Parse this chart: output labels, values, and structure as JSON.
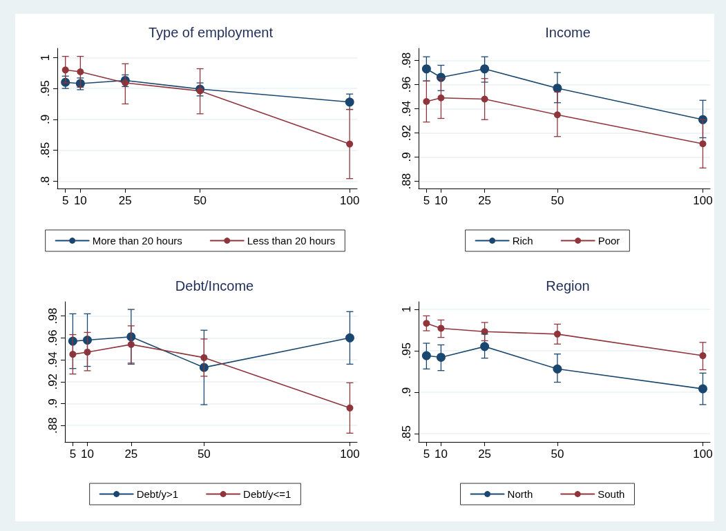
{
  "chart_data": [
    {
      "type": "line",
      "title": "Type of employment",
      "x": [
        5,
        10,
        25,
        50,
        100
      ],
      "xlim": [
        2.3,
        102.5
      ],
      "xticks": [
        5,
        10,
        25,
        50,
        100
      ],
      "ylim": [
        0.788,
        1.015
      ],
      "yticks": [
        {
          "value": 0.8,
          "label": ".8"
        },
        {
          "value": 0.85,
          "label": ".85"
        },
        {
          "value": 0.9,
          "label": ".9"
        },
        {
          "value": 0.95,
          "label": ".95"
        },
        1
      ],
      "grid": "y",
      "legend": "bottom",
      "marker": "circle",
      "line_style": "solid",
      "series": [
        {
          "name": "More than 20 hours",
          "color": "#1a476f",
          "values": [
            0.96,
            0.958,
            0.963,
            0.949,
            0.928
          ],
          "errors": [
            [
              0.95,
              0.97
            ],
            [
              0.948,
              0.967
            ],
            [
              0.953,
              0.972
            ],
            [
              0.938,
              0.959
            ],
            [
              0.916,
              0.941
            ]
          ]
        },
        {
          "name": "Less than 20 hours",
          "color": "#90353b",
          "values": [
            0.98,
            0.977,
            0.959,
            0.946,
            0.86
          ],
          "errors": [
            [
              0.959,
              1.002
            ],
            [
              0.952,
              1.002
            ],
            [
              0.925,
              0.99
            ],
            [
              0.909,
              0.982
            ],
            [
              0.804,
              0.916
            ]
          ]
        }
      ]
    },
    {
      "type": "line",
      "title": "Income",
      "x": [
        5,
        10,
        25,
        50,
        100
      ],
      "xlim": [
        2.3,
        102.5
      ],
      "xticks": [
        5,
        10,
        25,
        50,
        100
      ],
      "ylim": [
        0.874,
        0.99
      ],
      "yticks": [
        {
          "value": 0.88,
          "label": ".88"
        },
        {
          "value": 0.9,
          "label": ".9"
        },
        {
          "value": 0.92,
          "label": ".92"
        },
        {
          "value": 0.94,
          "label": ".94"
        },
        {
          "value": 0.96,
          "label": ".96"
        },
        {
          "value": 0.98,
          "label": ".98"
        }
      ],
      "grid": "y",
      "legend": "bottom",
      "marker": "circle",
      "line_style": "solid",
      "series": [
        {
          "name": "Rich",
          "color": "#1a476f",
          "values": [
            0.973,
            0.966,
            0.973,
            0.957,
            0.931
          ],
          "errors": [
            [
              0.963,
              0.983
            ],
            [
              0.955,
              0.976
            ],
            [
              0.962,
              0.983
            ],
            [
              0.945,
              0.97
            ],
            [
              0.916,
              0.947
            ]
          ]
        },
        {
          "name": "Poor",
          "color": "#90353b",
          "values": [
            0.946,
            0.949,
            0.948,
            0.935,
            0.911
          ],
          "errors": [
            [
              0.929,
              0.963
            ],
            [
              0.932,
              0.965
            ],
            [
              0.931,
              0.965
            ],
            [
              0.917,
              0.954
            ],
            [
              0.891,
              0.931
            ]
          ]
        }
      ]
    },
    {
      "type": "line",
      "title": "Debt/Income",
      "x": [
        5,
        10,
        25,
        50,
        100
      ],
      "xlim": [
        2.3,
        102.5
      ],
      "xticks": [
        5,
        10,
        25,
        50,
        100
      ],
      "ylim": [
        0.865,
        0.993
      ],
      "yticks": [
        {
          "value": 0.88,
          "label": ".88"
        },
        {
          "value": 0.9,
          "label": ".9"
        },
        {
          "value": 0.92,
          "label": ".92"
        },
        {
          "value": 0.94,
          "label": ".94"
        },
        {
          "value": 0.96,
          "label": ".96"
        },
        {
          "value": 0.98,
          "label": ".98"
        }
      ],
      "grid": "y",
      "legend": "bottom",
      "marker": "circle",
      "line_style": "solid",
      "series": [
        {
          "name": "Debt/y>1",
          "color": "#1a476f",
          "values": [
            0.957,
            0.958,
            0.961,
            0.933,
            0.96
          ],
          "errors": [
            [
              0.932,
              0.982
            ],
            [
              0.934,
              0.982
            ],
            [
              0.936,
              0.986
            ],
            [
              0.899,
              0.967
            ],
            [
              0.936,
              0.984
            ]
          ]
        },
        {
          "name": "Debt/y<=1",
          "color": "#90353b",
          "values": [
            0.945,
            0.947,
            0.954,
            0.942,
            0.896
          ],
          "errors": [
            [
              0.927,
              0.963
            ],
            [
              0.93,
              0.965
            ],
            [
              0.937,
              0.971
            ],
            [
              0.925,
              0.959
            ],
            [
              0.873,
              0.919
            ]
          ]
        }
      ]
    },
    {
      "type": "line",
      "title": "Region",
      "x": [
        5,
        10,
        25,
        50,
        100
      ],
      "xlim": [
        2.3,
        102.5
      ],
      "xticks": [
        5,
        10,
        25,
        50,
        100
      ],
      "ylim": [
        0.84,
        1.009
      ],
      "yticks": [
        {
          "value": 0.85,
          "label": ".85"
        },
        {
          "value": 0.9,
          "label": ".9"
        },
        {
          "value": 0.95,
          "label": ".95"
        },
        1
      ],
      "grid": "y",
      "legend": "bottom",
      "marker": "circle",
      "line_style": "solid",
      "series": [
        {
          "name": "North",
          "color": "#1a476f",
          "values": [
            0.944,
            0.942,
            0.955,
            0.928,
            0.904
          ],
          "errors": [
            [
              0.928,
              0.959
            ],
            [
              0.926,
              0.957
            ],
            [
              0.941,
              0.97
            ],
            [
              0.912,
              0.946
            ],
            [
              0.885,
              0.923
            ]
          ]
        },
        {
          "name": "South",
          "color": "#90353b",
          "values": [
            0.983,
            0.977,
            0.973,
            0.97,
            0.944
          ],
          "errors": [
            [
              0.974,
              0.992
            ],
            [
              0.966,
              0.987
            ],
            [
              0.962,
              0.984
            ],
            [
              0.958,
              0.982
            ],
            [
              0.927,
              0.96
            ]
          ]
        }
      ]
    }
  ]
}
